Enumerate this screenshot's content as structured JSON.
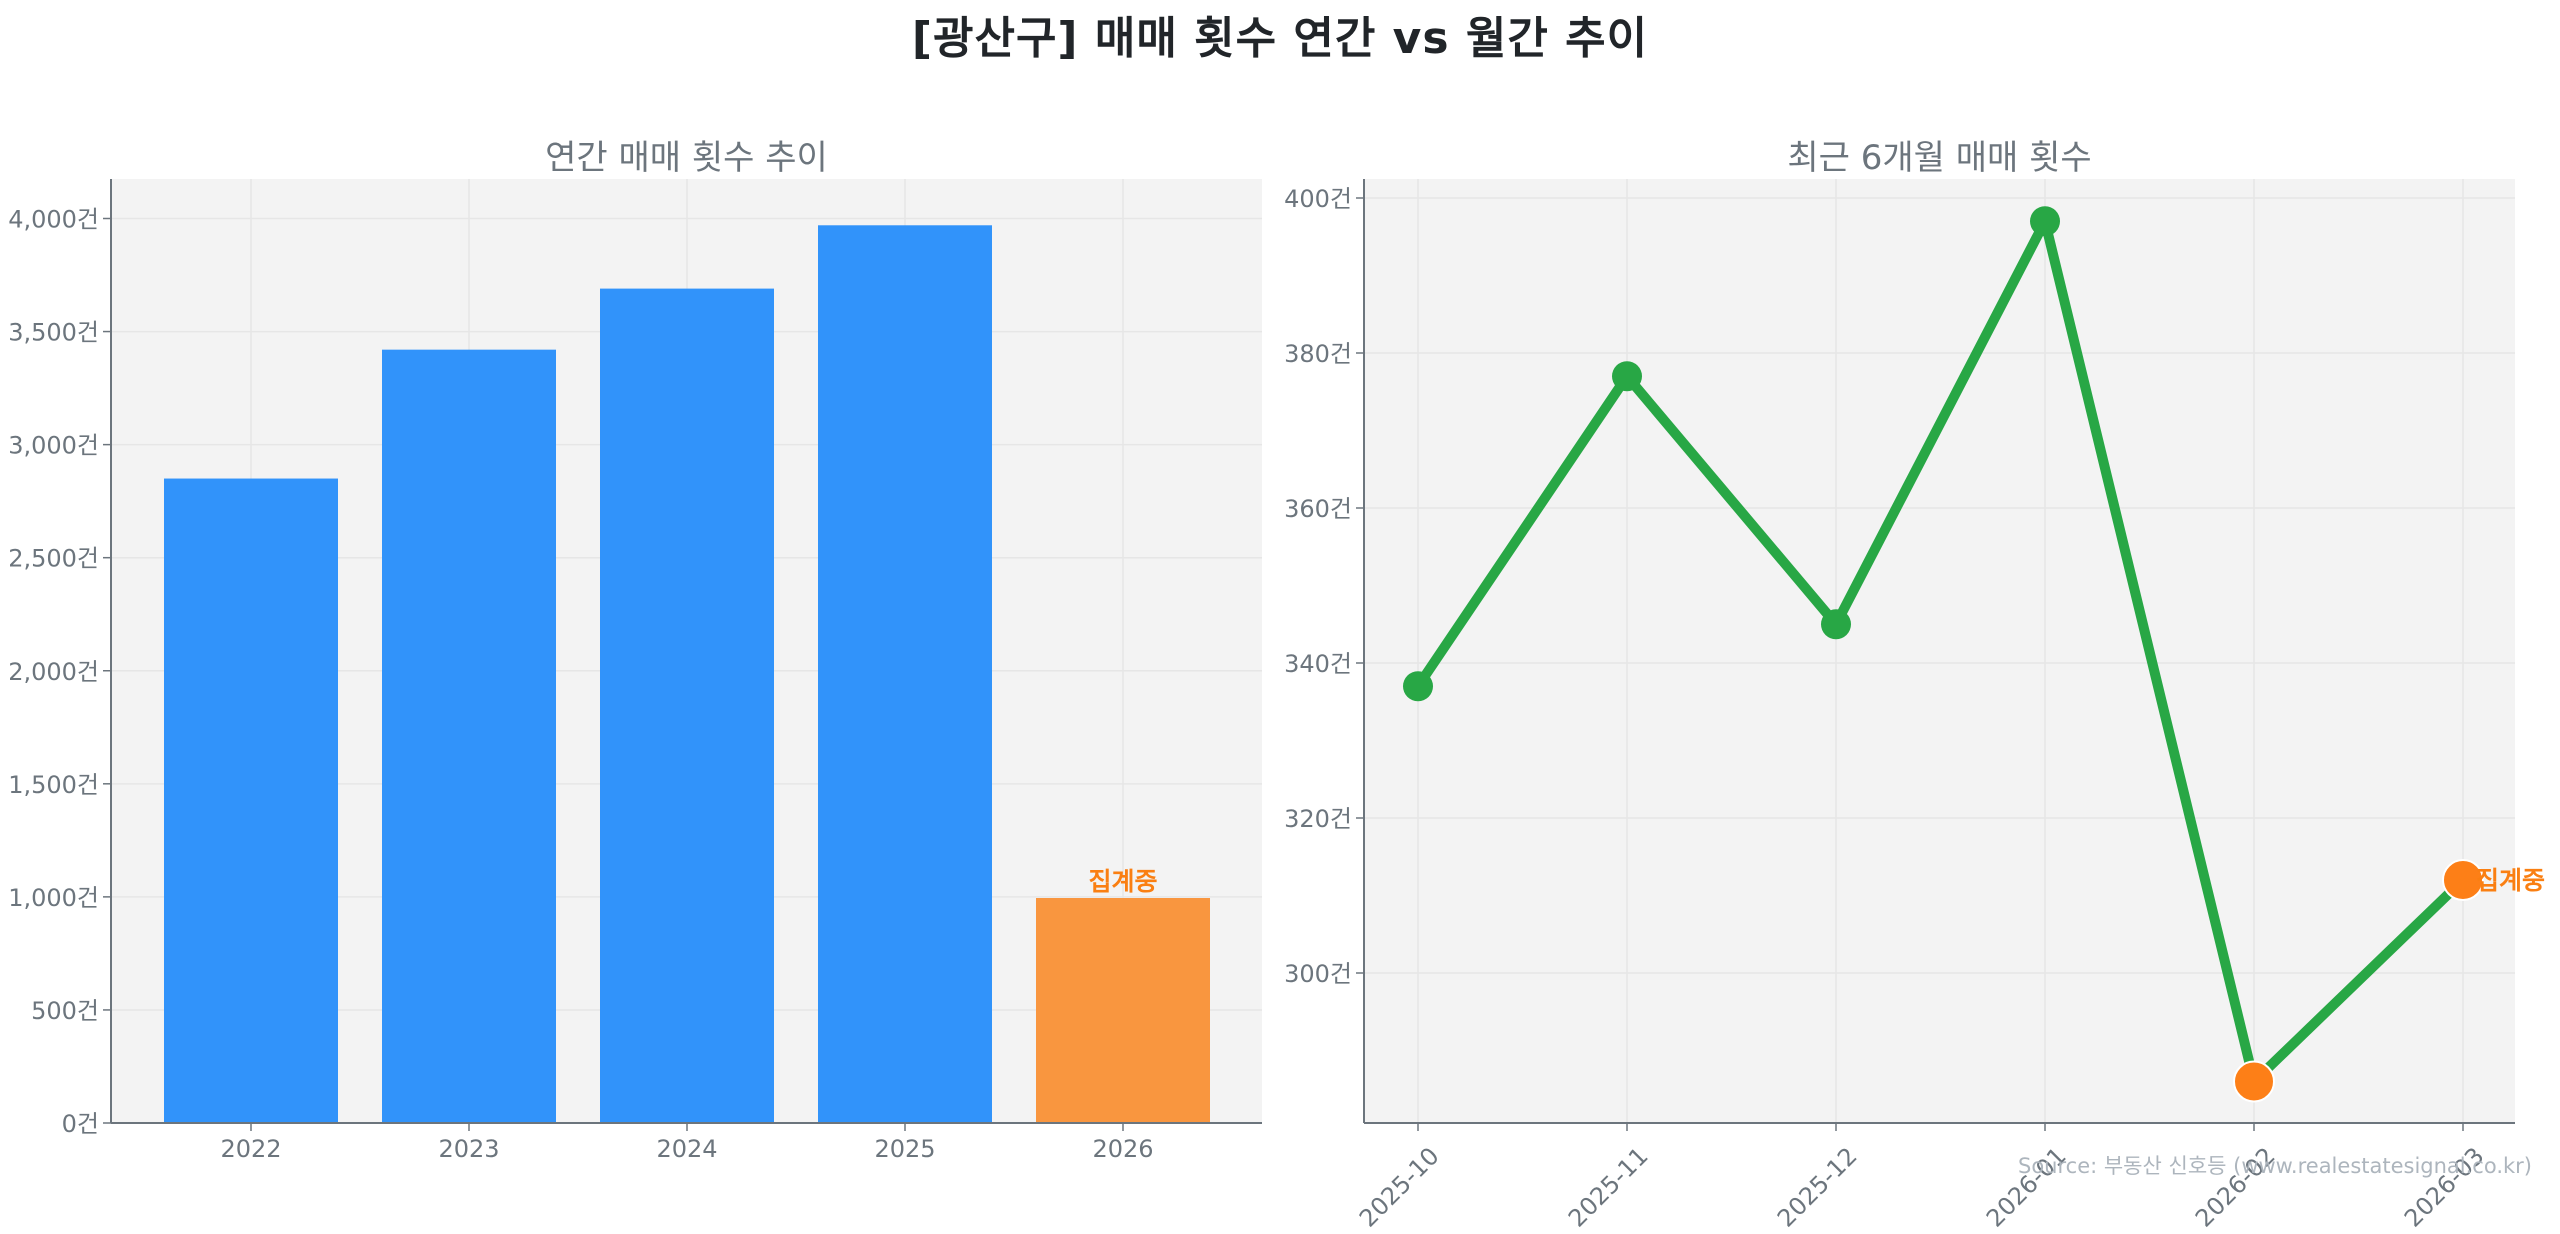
{
  "figure": {
    "title": "[광산구] 매매 횟수 연간 vs 월간 추이",
    "source": "Source: 부동산 신호등 (www.realestatesignal.co.kr)"
  },
  "colors": {
    "bar_complete": "#3193FA",
    "bar_partial": "#F9963F",
    "partial_label": "#FA7F12",
    "line": "#28A745",
    "marker": "#28A745",
    "marker_partial": "#FD7F17",
    "plot_bg": "#F3F3F3",
    "grid": "#E6E6E6",
    "axis": "#6C757D"
  },
  "chart_data": [
    {
      "type": "bar",
      "title": "연간 매매 횟수 추이",
      "xlabel": "",
      "ylabel": "",
      "categories": [
        "2022",
        "2023",
        "2024",
        "2025",
        "2026"
      ],
      "values": [
        2850,
        3420,
        3690,
        3970,
        995
      ],
      "partial": [
        false,
        false,
        false,
        false,
        true
      ],
      "annotations": [
        {
          "x": "2026",
          "text": "집계중"
        }
      ],
      "ylim": [
        0,
        4170
      ],
      "yticks": [
        0,
        500,
        1000,
        1500,
        2000,
        2500,
        3000,
        3500,
        4000
      ],
      "ytick_labels": [
        "0건",
        "500건",
        "1,000건",
        "1,500건",
        "2,000건",
        "2,500건",
        "3,000건",
        "3,500건",
        "4,000건"
      ],
      "grid": true
    },
    {
      "type": "line",
      "title": "최근 6개월 매매 횟수",
      "xlabel": "",
      "ylabel": "",
      "categories": [
        "2025-10",
        "2025-11",
        "2025-12",
        "2026-01",
        "2026-02",
        "2026-03"
      ],
      "values": [
        337,
        377,
        345,
        397,
        286,
        312
      ],
      "partial": [
        false,
        false,
        false,
        false,
        true,
        true
      ],
      "annotations": [
        {
          "x": "2026-03",
          "text": "집계중"
        }
      ],
      "ylim": [
        280.8,
        402.5
      ],
      "yticks": [
        300,
        320,
        340,
        360,
        380,
        400
      ],
      "ytick_labels": [
        "300건",
        "320건",
        "340건",
        "360건",
        "380건",
        "400건"
      ],
      "xtick_rotation": 45,
      "grid": true
    }
  ]
}
